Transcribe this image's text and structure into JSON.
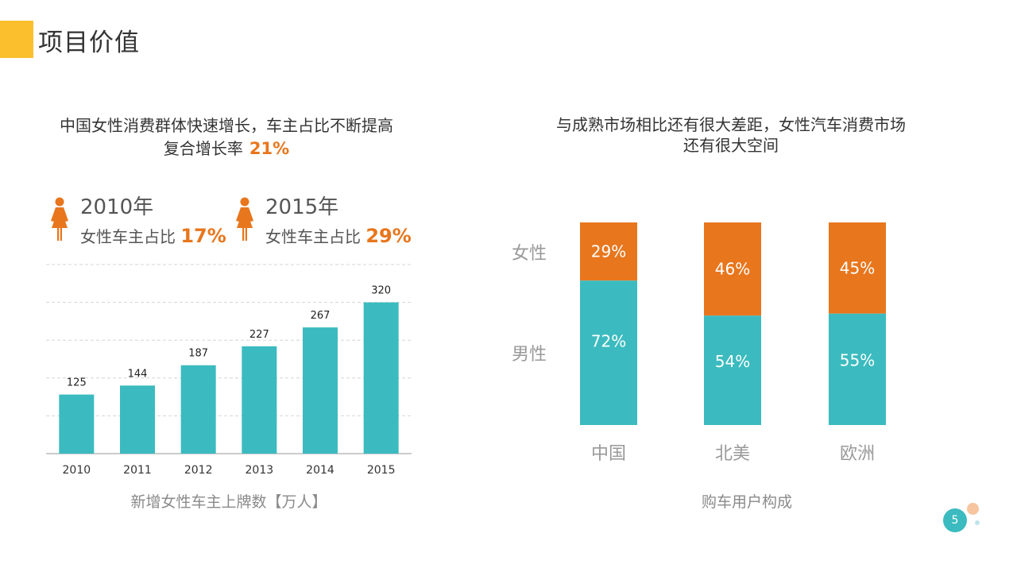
{
  "page": {
    "title": "项目价值",
    "page_number": "5",
    "colors": {
      "accent": "#FBBF2D",
      "teal": "#3BBBBF",
      "orange": "#E8761D"
    }
  },
  "left_panel": {
    "headline_line1": "中国女性消费群体快速增长，车主占比不断提高",
    "headline_line2_prefix": "复合增长率",
    "growth_rate": "21%",
    "stats": [
      {
        "year": "2010年",
        "label": "女性车主占比",
        "value": "17%",
        "icon": "female-person-icon"
      },
      {
        "year": "2015年",
        "label": "女性车主占比",
        "value": "29%",
        "icon": "female-person-icon"
      }
    ],
    "caption": "新增女性车主上牌数【万人】"
  },
  "right_panel": {
    "headline_line1": "与成熟市场相比还有很大差距，女性汽车消费市场",
    "headline_line2": "还有很大空间",
    "legend_female": "女性",
    "legend_male": "男性",
    "caption": "购车用户构成"
  },
  "chart_data": [
    {
      "type": "bar",
      "categories": [
        "2010",
        "2011",
        "2012",
        "2013",
        "2014",
        "2015"
      ],
      "values": [
        125,
        144,
        187,
        227,
        267,
        320
      ],
      "title": "新增女性车主上牌数【万人】",
      "ylim": [
        0,
        400
      ],
      "grid": true,
      "color": "#3BBBBF"
    },
    {
      "type": "bar",
      "stacked": true,
      "categories": [
        "中国",
        "北美",
        "欧洲"
      ],
      "series": [
        {
          "name": "女性",
          "values": [
            29,
            46,
            45
          ],
          "labels": [
            "29%",
            "46%",
            "45%"
          ],
          "color": "#E8761D"
        },
        {
          "name": "男性",
          "values": [
            72,
            54,
            55
          ],
          "labels": [
            "72%",
            "54%",
            "55%"
          ],
          "color": "#3BBBBF"
        }
      ],
      "title": "购车用户构成"
    }
  ]
}
